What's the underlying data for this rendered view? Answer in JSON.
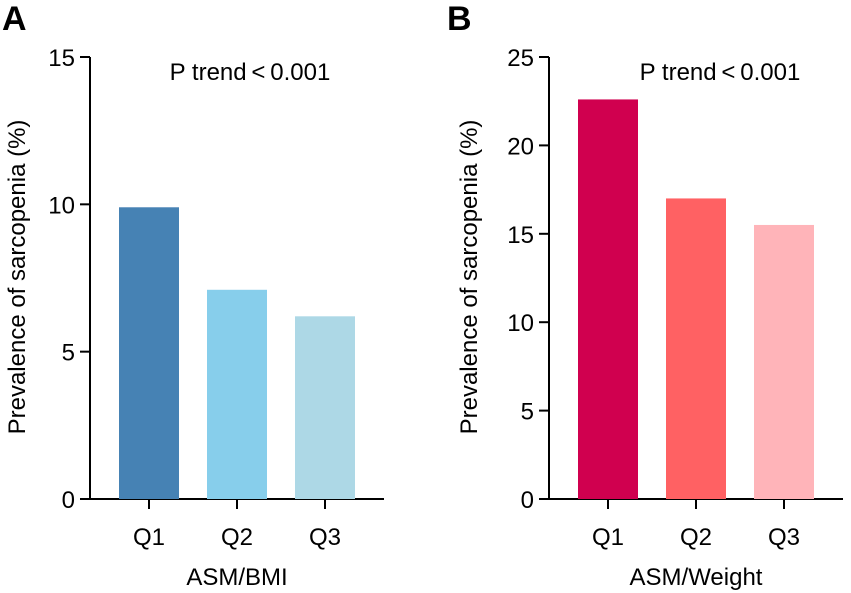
{
  "chart_data": [
    {
      "panel_label": "A",
      "type": "bar",
      "categories": [
        "Q1",
        "Q2",
        "Q3"
      ],
      "values": [
        9.9,
        7.1,
        6.2
      ],
      "colors": [
        "#4682B4",
        "#87CEEB",
        "#ADD8E6"
      ],
      "annotation": "P trend < 0.001",
      "xlabel": "ASM/BMI",
      "ylabel": "Prevalence of  sarcopenia (%)",
      "ylim": [
        0,
        15
      ],
      "yticks": [
        "0",
        "5",
        "10",
        "15"
      ],
      "ytick_values": [
        0,
        5,
        10,
        15
      ]
    },
    {
      "panel_label": "B",
      "type": "bar",
      "categories": [
        "Q1",
        "Q2",
        "Q3"
      ],
      "values": [
        22.6,
        17.0,
        15.5
      ],
      "colors": [
        "#D0004F",
        "#FF6163",
        "#FFB4B9"
      ],
      "annotation": "P trend < 0.001",
      "xlabel": "ASM/Weight",
      "ylabel": "Prevalence of  sarcopenia (%)",
      "ylim": [
        0,
        25
      ],
      "yticks": [
        "0",
        "5",
        "10",
        "15",
        "20",
        "25"
      ],
      "ytick_values": [
        0,
        5,
        10,
        15,
        20,
        25
      ]
    }
  ]
}
